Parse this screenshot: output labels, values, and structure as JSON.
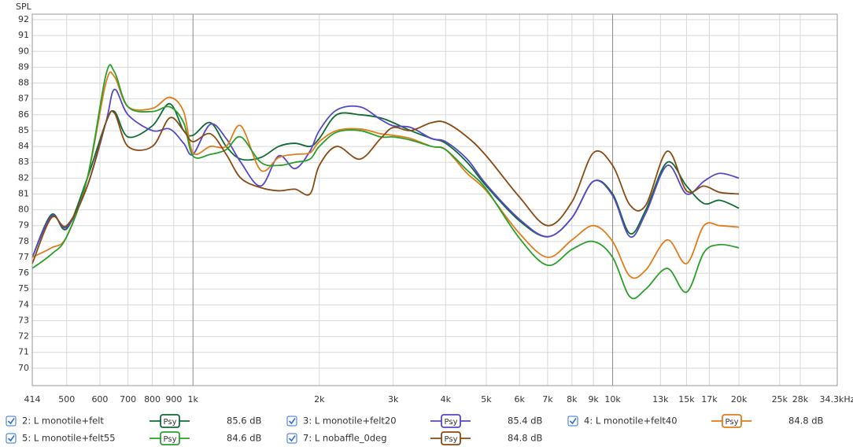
{
  "chart_data": {
    "type": "line",
    "ylabel": "SPL",
    "log_x": true,
    "grid": true,
    "smoothing": "Psy",
    "xlim": [
      414,
      34300
    ],
    "ylim": [
      68.9,
      92.35
    ],
    "xticks": [
      414,
      500,
      600,
      700,
      800,
      900,
      {
        "value": 1000,
        "label": "1k"
      },
      {
        "value": 2000,
        "label": "2k"
      },
      {
        "value": 3000,
        "label": "3k"
      },
      {
        "value": 4000,
        "label": "4k"
      },
      {
        "value": 5000,
        "label": "5k"
      },
      {
        "value": 6000,
        "label": "6k"
      },
      {
        "value": 7000,
        "label": "7k"
      },
      {
        "value": 8000,
        "label": "8k"
      },
      {
        "value": 9000,
        "label": "9k"
      },
      {
        "value": 10000,
        "label": "10k"
      },
      {
        "value": 13000,
        "label": "13k"
      },
      {
        "value": 15000,
        "label": "15k"
      },
      {
        "value": 17000,
        "label": "17k"
      },
      {
        "value": 20000,
        "label": "20k"
      },
      {
        "value": 25000,
        "label": "25k"
      },
      {
        "value": 28000,
        "label": "28k"
      },
      {
        "value": 34300,
        "label": "34.3kHz"
      }
    ],
    "yticks": [
      70,
      71,
      72,
      73,
      74,
      75,
      76,
      77,
      78,
      79,
      80,
      81,
      82,
      83,
      84,
      85,
      86,
      87,
      88,
      89,
      90,
      91,
      92
    ],
    "x": [
      414,
      460,
      500,
      560,
      620,
      650,
      700,
      800,
      880,
      950,
      1000,
      1100,
      1200,
      1300,
      1450,
      1600,
      1750,
      1900,
      2000,
      2200,
      2500,
      2800,
      3000,
      3300,
      3700,
      4000,
      4500,
      5000,
      6000,
      7000,
      8000,
      9000,
      10000,
      11000,
      12000,
      13500,
      15000,
      16500,
      18000,
      20000
    ],
    "series": [
      {
        "name": "2: L monotile+felt",
        "color": "#0e6b35",
        "level": "85.6 dB",
        "values": [
          77.0,
          79.7,
          78.8,
          82.0,
          85.5,
          86.2,
          84.6,
          85.3,
          86.7,
          85.0,
          84.7,
          85.5,
          84.0,
          83.2,
          83.3,
          84.0,
          84.2,
          84.0,
          84.5,
          86.0,
          86.0,
          85.8,
          85.5,
          85.0,
          84.5,
          84.2,
          83.0,
          81.5,
          79.3,
          78.3,
          79.5,
          81.8,
          81.0,
          78.5,
          80.0,
          83.0,
          81.5,
          80.4,
          80.6,
          80.1
        ]
      },
      {
        "name": "3: L monotile+felt20",
        "color": "#5548c8",
        "level": "85.4 dB",
        "values": [
          77.0,
          79.6,
          78.9,
          81.5,
          85.5,
          87.6,
          86.0,
          85.0,
          85.1,
          84.2,
          83.5,
          85.4,
          84.5,
          83.0,
          81.5,
          83.4,
          82.6,
          83.7,
          85.0,
          86.3,
          86.5,
          85.7,
          85.3,
          85.2,
          84.5,
          84.3,
          83.2,
          81.6,
          79.4,
          78.3,
          79.5,
          81.8,
          80.9,
          78.3,
          79.8,
          82.8,
          81.0,
          81.8,
          82.3,
          82.0
        ]
      },
      {
        "name": "4: L monotile+felt40",
        "color": "#e07c1a",
        "level": "84.8 dB",
        "values": [
          77.0,
          77.6,
          78.3,
          82.0,
          88.0,
          88.4,
          86.5,
          86.4,
          87.1,
          86.2,
          83.6,
          84.0,
          84.0,
          85.3,
          82.5,
          83.3,
          83.5,
          83.6,
          84.3,
          85.0,
          85.1,
          84.8,
          84.7,
          84.5,
          84.0,
          83.8,
          82.3,
          81.2,
          78.5,
          77.0,
          78.1,
          79.0,
          78.0,
          75.8,
          76.2,
          78.1,
          76.6,
          79.0,
          79.0,
          78.9
        ]
      },
      {
        "name": "5: L monotile+felt55",
        "color": "#2aa02a",
        "level": "84.6 dB",
        "values": [
          76.3,
          77.2,
          78.3,
          82.0,
          88.5,
          88.7,
          86.5,
          86.2,
          86.5,
          85.5,
          83.4,
          83.5,
          83.8,
          84.6,
          83.0,
          82.8,
          83.0,
          83.2,
          84.0,
          84.9,
          85.0,
          84.6,
          84.6,
          84.4,
          84.0,
          83.8,
          82.5,
          81.3,
          78.2,
          76.5,
          77.5,
          78.0,
          77.0,
          74.5,
          75.0,
          76.3,
          74.8,
          77.3,
          77.8,
          77.6
        ]
      },
      {
        "name": "7: L nobaffle_0deg",
        "color": "#8a4a12",
        "level": "84.8 dB",
        "values": [
          76.6,
          79.5,
          79.0,
          81.5,
          85.5,
          86.1,
          84.0,
          84.0,
          85.8,
          85.0,
          84.3,
          84.8,
          83.5,
          82.0,
          81.4,
          81.2,
          81.3,
          81.0,
          82.8,
          84.0,
          83.2,
          84.5,
          85.2,
          85.0,
          85.5,
          85.5,
          84.6,
          83.4,
          80.8,
          79.0,
          80.5,
          83.6,
          82.8,
          80.3,
          80.3,
          83.7,
          81.2,
          81.5,
          81.1,
          81.0
        ]
      }
    ]
  }
}
